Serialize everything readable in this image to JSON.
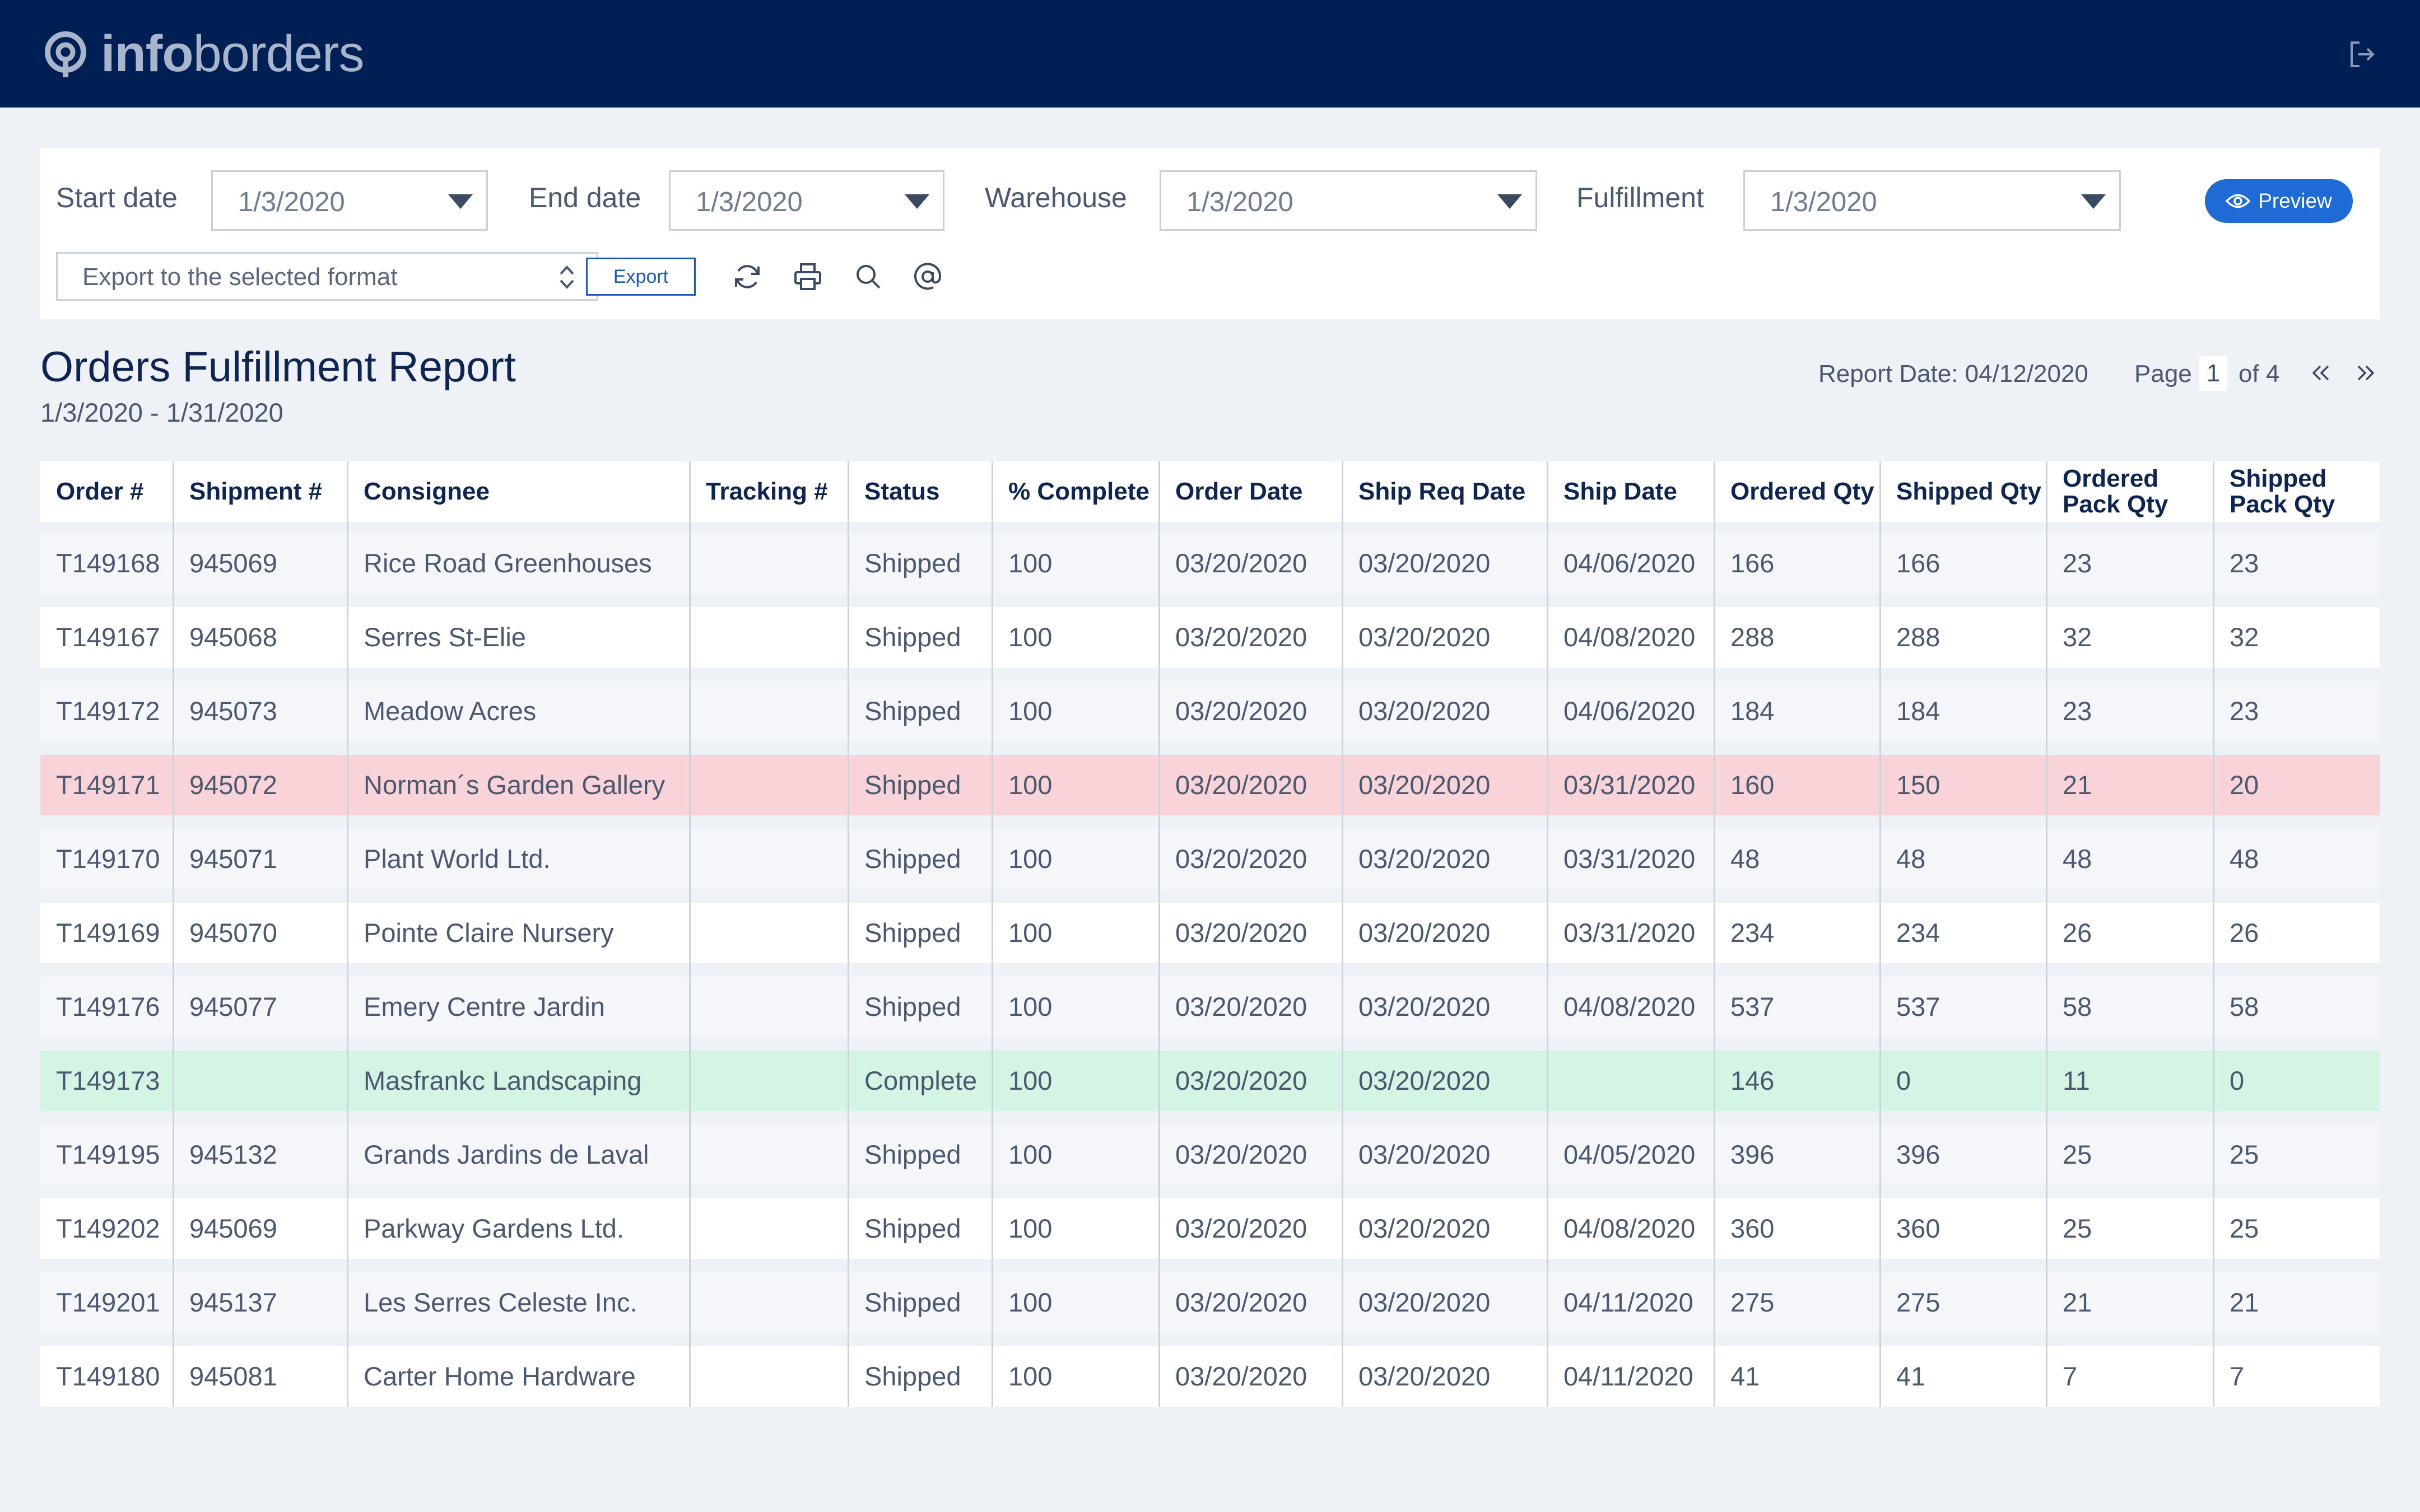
{
  "header": {
    "logo_info": "info",
    "logo_borders": "borders",
    "logout_icon": "logout-icon"
  },
  "filters": {
    "start_date_label": "Start date",
    "start_date_value": "1/3/2020",
    "end_date_label": "End date",
    "end_date_value": "1/3/2020",
    "warehouse_label": "Warehouse",
    "warehouse_value": "1/3/2020",
    "fulfillment_label": "Fulfillment",
    "fulfillment_value": "1/3/2020",
    "preview_label": "Preview",
    "export_format_value": "Export to the selected format",
    "export_label": "Export",
    "tools": [
      "refresh-icon",
      "print-icon",
      "search-icon",
      "email-icon"
    ]
  },
  "report": {
    "title": "Orders Fulfillment Report",
    "range": "1/3/2020 - 1/31/2020",
    "report_date": "Report Date: 04/12/2020",
    "page_label": "Page",
    "page_number": "1",
    "page_of": "of 4"
  },
  "table": {
    "columns": [
      "Order #",
      "Shipment #",
      "Consignee",
      "Tracking #",
      "Status",
      "% Complete",
      "Order Date",
      "Ship Req Date",
      "Ship Date",
      "Ordered Qty",
      "Shipped Qty",
      "Ordered Pack Qty",
      "Shipped Pack Qty"
    ],
    "highlight_colors": {
      "red": "#f8d3d8",
      "green": "#d4f4e4"
    },
    "rows": [
      {
        "highlight": "",
        "cells": [
          "T149168",
          "945069",
          "Rice Road Greenhouses",
          "",
          "Shipped",
          "100",
          "03/20/2020",
          "03/20/2020",
          "04/06/2020",
          "166",
          "166",
          "23",
          "23"
        ]
      },
      {
        "highlight": "",
        "cells": [
          "T149167",
          "945068",
          "Serres St-Elie",
          "",
          "Shipped",
          "100",
          "03/20/2020",
          "03/20/2020",
          "04/08/2020",
          "288",
          "288",
          "32",
          "32"
        ]
      },
      {
        "highlight": "",
        "cells": [
          "T149172",
          "945073",
          "Meadow Acres",
          "",
          "Shipped",
          "100",
          "03/20/2020",
          "03/20/2020",
          "04/06/2020",
          "184",
          "184",
          "23",
          "23"
        ]
      },
      {
        "highlight": "red",
        "cells": [
          "T149171",
          "945072",
          "Norman´s Garden Gallery",
          "",
          "Shipped",
          "100",
          "03/20/2020",
          "03/20/2020",
          "03/31/2020",
          "160",
          "150",
          "21",
          "20"
        ]
      },
      {
        "highlight": "",
        "cells": [
          "T149170",
          "945071",
          "Plant World Ltd.",
          "",
          "Shipped",
          "100",
          "03/20/2020",
          "03/20/2020",
          "03/31/2020",
          "48",
          "48",
          "48",
          "48"
        ]
      },
      {
        "highlight": "",
        "cells": [
          "T149169",
          "945070",
          "Pointe Claire Nursery",
          "",
          "Shipped",
          "100",
          "03/20/2020",
          "03/20/2020",
          "03/31/2020",
          "234",
          "234",
          "26",
          "26"
        ]
      },
      {
        "highlight": "",
        "cells": [
          "T149176",
          "945077",
          "Emery Centre Jardin",
          "",
          "Shipped",
          "100",
          "03/20/2020",
          "03/20/2020",
          "04/08/2020",
          "537",
          "537",
          "58",
          "58"
        ]
      },
      {
        "highlight": "green",
        "cells": [
          "T149173",
          "",
          "Masfrankc Landscaping",
          "",
          "Complete",
          "100",
          "03/20/2020",
          "03/20/2020",
          "",
          "146",
          "0",
          "11",
          "0"
        ]
      },
      {
        "highlight": "",
        "cells": [
          "T149195",
          "945132",
          "Grands Jardins de Laval",
          "",
          "Shipped",
          "100",
          "03/20/2020",
          "03/20/2020",
          "04/05/2020",
          "396",
          "396",
          "25",
          "25"
        ]
      },
      {
        "highlight": "",
        "cells": [
          "T149202",
          "945069",
          "Parkway Gardens Ltd.",
          "",
          "Shipped",
          "100",
          "03/20/2020",
          "03/20/2020",
          "04/08/2020",
          "360",
          "360",
          "25",
          "25"
        ]
      },
      {
        "highlight": "",
        "cells": [
          "T149201",
          "945137",
          "Les Serres Celeste Inc.",
          "",
          "Shipped",
          "100",
          "03/20/2020",
          "03/20/2020",
          "04/11/2020",
          "275",
          "275",
          "21",
          "21"
        ]
      },
      {
        "highlight": "",
        "cells": [
          "T149180",
          "945081",
          "Carter Home Hardware",
          "",
          "Shipped",
          "100",
          "03/20/2020",
          "03/20/2020",
          "04/11/2020",
          "41",
          "41",
          "7",
          "7"
        ]
      }
    ]
  }
}
